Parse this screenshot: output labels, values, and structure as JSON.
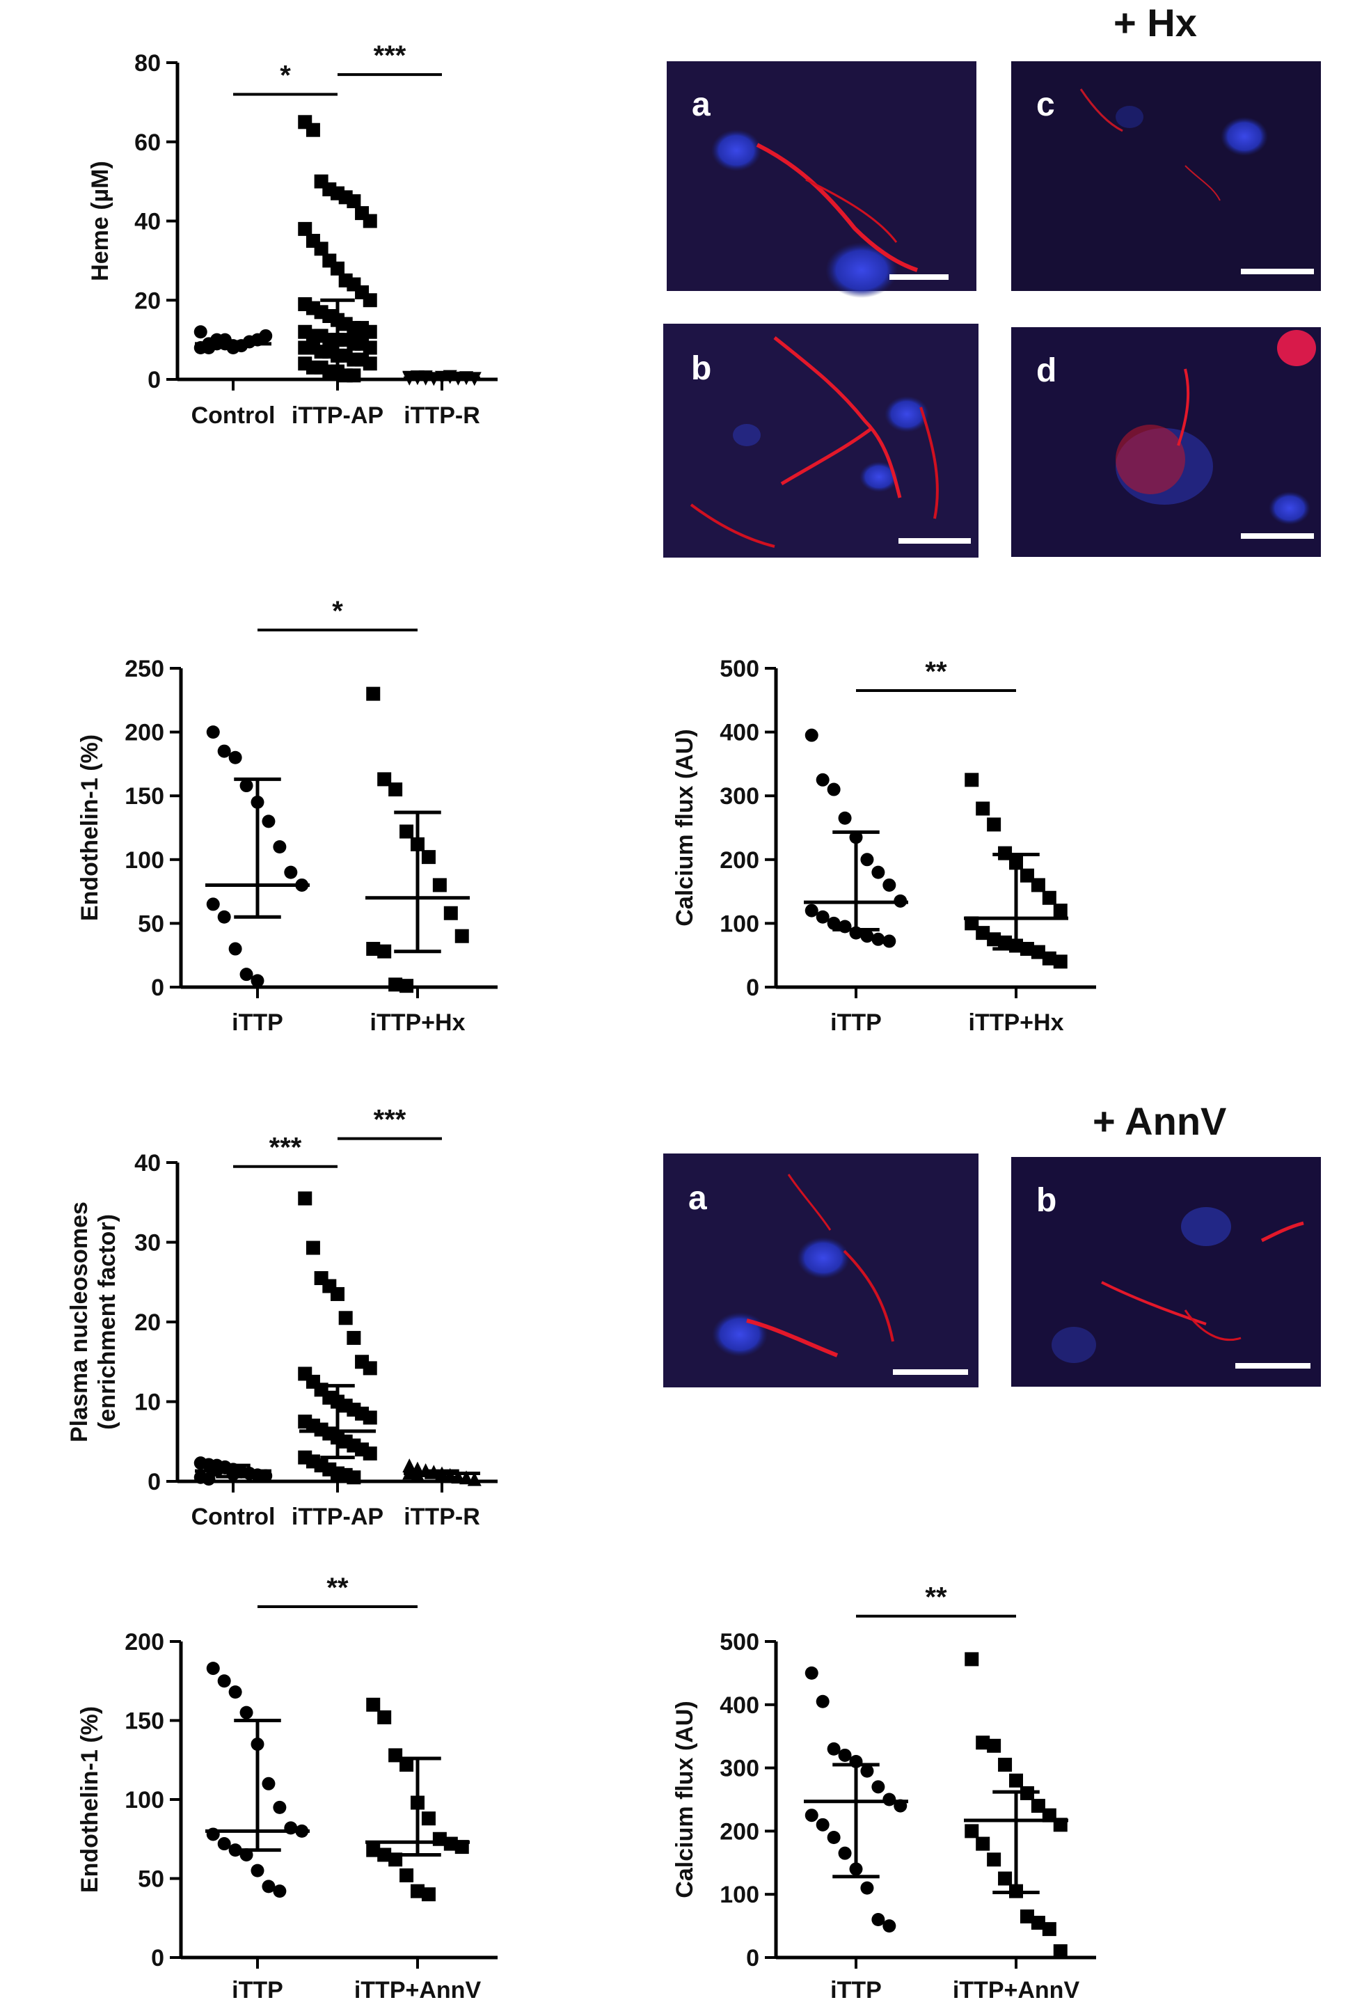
{
  "headings": {
    "hx": "+ Hx",
    "annv": "+ AnnV"
  },
  "micrographs": [
    {
      "id": "a",
      "label": "a",
      "group": "hx"
    },
    {
      "id": "b",
      "label": "b",
      "group": "hx"
    },
    {
      "id": "c",
      "label": "c",
      "group": "hx"
    },
    {
      "id": "d",
      "label": "d",
      "group": "hx"
    },
    {
      "id": "e",
      "label": "a",
      "group": "annv"
    },
    {
      "id": "f",
      "label": "b",
      "group": "annv"
    }
  ],
  "colors": {
    "background": "#1a0f3a",
    "nucleus": "#2a35c8",
    "signal": "#e3182a"
  },
  "chart_data": [
    {
      "id": "heme",
      "type": "scatter",
      "title": "",
      "xlabel": "",
      "ylabel": "Heme (µM)",
      "categories": [
        "Control",
        "iTTP-AP",
        "iTTP-R"
      ],
      "ylim": [
        0,
        80
      ],
      "yticks": [
        0,
        20,
        40,
        60,
        80
      ],
      "ytick_labels": [
        "0",
        "20",
        "40",
        "60",
        "80"
      ],
      "series": [
        {
          "category": "Control",
          "marker": "circle",
          "center": 9,
          "err": [
            8.6,
            9.5
          ],
          "values": [
            8,
            9,
            10,
            9,
            8,
            8.5,
            9.5,
            10,
            11,
            12,
            8,
            9,
            10,
            8.5
          ]
        },
        {
          "category": "iTTP-AP",
          "marker": "square",
          "center": 11,
          "err": [
            2,
            20
          ],
          "values": [
            65,
            63,
            50,
            48,
            47,
            46,
            45,
            42,
            40,
            38,
            35,
            33,
            30,
            28,
            25,
            24,
            22,
            20,
            19,
            18,
            17,
            16,
            15,
            14,
            13,
            13,
            12,
            12,
            11,
            11,
            10,
            10,
            10,
            9,
            9,
            8,
            8,
            8,
            7,
            7,
            6,
            6,
            5,
            5,
            4,
            4,
            3,
            3,
            2,
            2,
            1,
            1
          ]
        },
        {
          "category": "iTTP-R",
          "marker": "triangle-down",
          "center": 0.3,
          "err": [
            0,
            0.5
          ],
          "values": [
            0.2,
            0.3,
            0.5,
            0.1,
            0.4,
            0.6,
            0.2,
            0.3,
            0.1,
            0.4,
            0.5,
            0.2
          ]
        }
      ],
      "significance": [
        {
          "from": "Control",
          "to": "iTTP-AP",
          "label": "*",
          "y": 72
        },
        {
          "from": "iTTP-AP",
          "to": "iTTP-R",
          "label": "***",
          "y": 77
        }
      ]
    },
    {
      "id": "endothelin-hx",
      "type": "scatter",
      "title": "",
      "xlabel": "",
      "ylabel": "Endothelin-1 (%)",
      "categories": [
        "iTTP",
        "iTTP+Hx"
      ],
      "ylim": [
        0,
        250
      ],
      "yticks": [
        0,
        50,
        100,
        150,
        200,
        250
      ],
      "ytick_labels": [
        "0",
        "50",
        "100",
        "150",
        "200",
        "250"
      ],
      "series": [
        {
          "category": "iTTP",
          "marker": "circle",
          "center": 80,
          "err": [
            55,
            163
          ],
          "values": [
            200,
            185,
            180,
            158,
            145,
            130,
            110,
            90,
            80,
            65,
            55,
            30,
            10,
            5
          ]
        },
        {
          "category": "iTTP+Hx",
          "marker": "square",
          "center": 70,
          "err": [
            28,
            137
          ],
          "values": [
            230,
            163,
            155,
            122,
            112,
            102,
            80,
            58,
            40,
            30,
            28,
            2,
            1
          ]
        }
      ],
      "significance": [
        {
          "from": "iTTP",
          "to": "iTTP+Hx",
          "label": "*",
          "y": 280
        }
      ]
    },
    {
      "id": "calcium-hx",
      "type": "scatter",
      "title": "",
      "xlabel": "",
      "ylabel": "Calcium flux (AU)",
      "categories": [
        "iTTP",
        "iTTP+Hx"
      ],
      "ylim": [
        0,
        500
      ],
      "yticks": [
        0,
        100,
        200,
        300,
        400,
        500
      ],
      "ytick_labels": [
        "0",
        "100",
        "200",
        "300",
        "400",
        "500"
      ],
      "series": [
        {
          "category": "iTTP",
          "marker": "circle",
          "center": 133,
          "err": [
            90,
            243
          ],
          "values": [
            395,
            325,
            310,
            265,
            235,
            200,
            180,
            160,
            135,
            120,
            110,
            100,
            95,
            85,
            80,
            75,
            72
          ]
        },
        {
          "category": "iTTP+Hx",
          "marker": "square",
          "center": 108,
          "err": [
            60,
            208
          ],
          "values": [
            325,
            280,
            255,
            210,
            195,
            175,
            160,
            140,
            120,
            100,
            85,
            75,
            70,
            65,
            60,
            55,
            45,
            40
          ]
        }
      ],
      "significance": [
        {
          "from": "iTTP",
          "to": "iTTP+Hx",
          "label": "**",
          "y": 465
        }
      ]
    },
    {
      "id": "nucleosomes",
      "type": "scatter",
      "title": "",
      "xlabel": "",
      "ylabel": "Plasma nucleosomes\n(enrichment factor)",
      "categories": [
        "Control",
        "iTTP-AP",
        "iTTP-R"
      ],
      "ylim": [
        0,
        40
      ],
      "yticks": [
        0,
        10,
        20,
        30,
        40
      ],
      "ytick_labels": [
        "0",
        "10",
        "20",
        "30",
        "40"
      ],
      "series": [
        {
          "category": "Control",
          "marker": "circle",
          "center": 1.3,
          "err": [
            0.6,
            2.0
          ],
          "values": [
            2.3,
            2.1,
            2.0,
            1.8,
            1.5,
            1.2,
            1.0,
            0.8,
            0.7,
            0.5,
            0.3,
            1.4,
            1.7,
            0.9
          ]
        },
        {
          "category": "iTTP-AP",
          "marker": "square",
          "center": 6.3,
          "err": [
            3,
            12
          ],
          "values": [
            35.5,
            29.3,
            25.5,
            24.5,
            23.5,
            20.5,
            18,
            15,
            14.2,
            13.5,
            12.5,
            11.5,
            10.5,
            10,
            9.5,
            9,
            8.5,
            8,
            7.5,
            7,
            6.5,
            6,
            5.5,
            5,
            4.5,
            4,
            3.5,
            3,
            2.5,
            2,
            1.5,
            1,
            0.8,
            0.5
          ]
        },
        {
          "category": "iTTP-R",
          "marker": "triangle",
          "center": 1.0,
          "err": [
            0.5,
            1.3
          ],
          "values": [
            2.0,
            1.6,
            1.4,
            1.2,
            1.0,
            0.8,
            0.6,
            0.5,
            0.3,
            1.1,
            0.9
          ]
        }
      ],
      "significance": [
        {
          "from": "Control",
          "to": "iTTP-AP",
          "label": "***",
          "y": 39.5
        },
        {
          "from": "iTTP-AP",
          "to": "iTTP-R",
          "label": "***",
          "y": 43
        }
      ]
    },
    {
      "id": "endothelin-annv",
      "type": "scatter",
      "title": "",
      "xlabel": "",
      "ylabel": "Endothelin-1 (%)",
      "categories": [
        "iTTP",
        "iTTP+AnnV"
      ],
      "ylim": [
        0,
        200
      ],
      "yticks": [
        0,
        50,
        100,
        150,
        200
      ],
      "ytick_labels": [
        "0",
        "50",
        "100",
        "150",
        "200"
      ],
      "series": [
        {
          "category": "iTTP",
          "marker": "circle",
          "center": 80,
          "err": [
            68,
            150
          ],
          "values": [
            183,
            175,
            168,
            155,
            135,
            110,
            95,
            82,
            80,
            78,
            72,
            68,
            65,
            55,
            45,
            42
          ]
        },
        {
          "category": "iTTP+AnnV",
          "marker": "square",
          "center": 73,
          "err": [
            65,
            126
          ],
          "values": [
            160,
            152,
            128,
            122,
            98,
            88,
            75,
            72,
            70,
            68,
            65,
            62,
            52,
            42,
            40
          ]
        }
      ],
      "significance": [
        {
          "from": "iTTP",
          "to": "iTTP+AnnV",
          "label": "**",
          "y": 222
        }
      ]
    },
    {
      "id": "calcium-annv",
      "type": "scatter",
      "title": "",
      "xlabel": "",
      "ylabel": "Calcium flux (AU)",
      "categories": [
        "iTTP",
        "iTTP+AnnV"
      ],
      "ylim": [
        0,
        500
      ],
      "yticks": [
        0,
        100,
        200,
        300,
        400,
        500
      ],
      "ytick_labels": [
        "0",
        "100",
        "200",
        "300",
        "400",
        "500"
      ],
      "series": [
        {
          "category": "iTTP",
          "marker": "circle",
          "center": 247,
          "err": [
            128,
            305
          ],
          "values": [
            450,
            405,
            330,
            320,
            310,
            295,
            270,
            250,
            240,
            225,
            210,
            190,
            165,
            140,
            110,
            60,
            50
          ]
        },
        {
          "category": "iTTP+AnnV",
          "marker": "square",
          "center": 217,
          "err": [
            103,
            262
          ],
          "values": [
            472,
            340,
            335,
            305,
            280,
            260,
            240,
            225,
            210,
            200,
            180,
            155,
            125,
            105,
            65,
            55,
            45,
            10
          ]
        }
      ],
      "significance": [
        {
          "from": "iTTP",
          "to": "iTTP+AnnV",
          "label": "**",
          "y": 540
        }
      ]
    }
  ]
}
